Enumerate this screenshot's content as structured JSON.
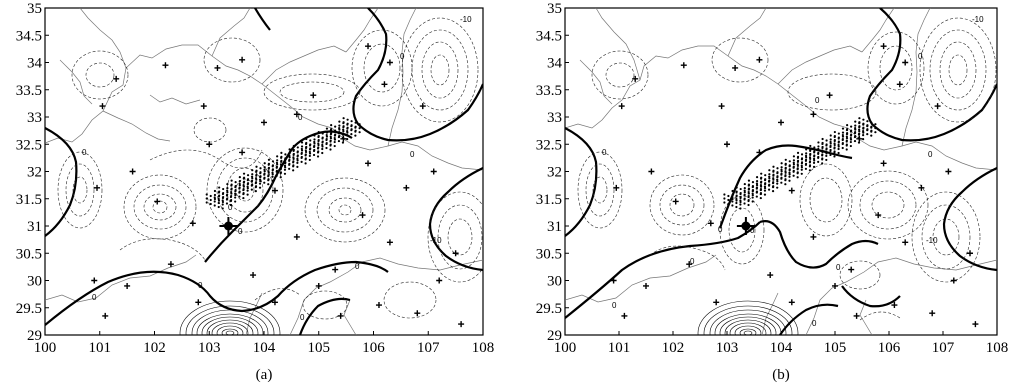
{
  "figure": {
    "panels": [
      {
        "caption": "(a)",
        "x_ticks": [
          "100",
          "101",
          "102",
          "103",
          "104",
          "105",
          "106",
          "107",
          "108"
        ],
        "y_ticks": [
          "35",
          "34.5",
          "34",
          "33.5",
          "33",
          "32.5",
          "32",
          "31.5",
          "31",
          "30.5",
          "30",
          "29.5",
          "29"
        ],
        "contour_labels": [
          "-10",
          "0",
          "0",
          "0",
          "0",
          "0",
          "0",
          "0",
          "0",
          "0",
          "-10",
          "0"
        ]
      },
      {
        "caption": "(b)",
        "x_ticks": [
          "100",
          "101",
          "102",
          "103",
          "104",
          "105",
          "106",
          "107",
          "108"
        ],
        "y_ticks": [
          "35",
          "34.5",
          "34",
          "33.5",
          "33",
          "32.5",
          "32",
          "31.5",
          "31",
          "30.5",
          "30",
          "29.5",
          "29"
        ],
        "contour_labels": [
          "-10",
          "0",
          "0",
          "0",
          "0",
          "0",
          "0",
          "0",
          "0",
          "0",
          "-10",
          "0"
        ]
      }
    ]
  },
  "map_data": {
    "x_range": [
      100,
      108
    ],
    "y_range": [
      29,
      35
    ],
    "stations": [
      [
        102.05,
        31.45
      ],
      [
        103.6,
        34.05
      ],
      [
        104.9,
        33.4
      ],
      [
        105.45,
        32.6
      ],
      [
        101.3,
        33.7
      ],
      [
        103.15,
        33.9
      ],
      [
        102.2,
        33.95
      ],
      [
        101.05,
        33.2
      ],
      [
        101.6,
        32.0
      ],
      [
        100.95,
        31.7
      ],
      [
        102.7,
        31.05
      ],
      [
        104.2,
        31.65
      ],
      [
        105.8,
        31.2
      ],
      [
        105.9,
        32.15
      ],
      [
        106.6,
        31.7
      ],
      [
        107.1,
        32.0
      ],
      [
        106.3,
        30.7
      ],
      [
        107.5,
        30.5
      ],
      [
        106.9,
        33.2
      ],
      [
        106.3,
        34.0
      ],
      [
        105.9,
        34.3
      ],
      [
        100.9,
        30.0
      ],
      [
        101.5,
        29.9
      ],
      [
        102.3,
        30.3
      ],
      [
        103.8,
        30.1
      ],
      [
        104.6,
        30.8
      ],
      [
        105.0,
        29.9
      ],
      [
        106.1,
        29.55
      ],
      [
        106.8,
        29.4
      ],
      [
        107.2,
        30.0
      ],
      [
        105.4,
        29.35
      ],
      [
        104.2,
        29.6
      ],
      [
        102.8,
        29.6
      ],
      [
        101.1,
        29.35
      ],
      [
        103.0,
        32.5
      ],
      [
        104.0,
        32.9
      ],
      [
        104.6,
        33.05
      ],
      [
        102.9,
        33.2
      ],
      [
        103.6,
        32.35
      ],
      [
        106.2,
        33.6
      ],
      [
        107.6,
        29.2
      ],
      [
        105.3,
        30.2
      ]
    ],
    "dense_zone_start": [
      103.1,
      31.45
    ],
    "dense_zone_end": [
      105.6,
      32.85
    ],
    "emphasis_point": [
      103.35,
      31.0
    ]
  }
}
